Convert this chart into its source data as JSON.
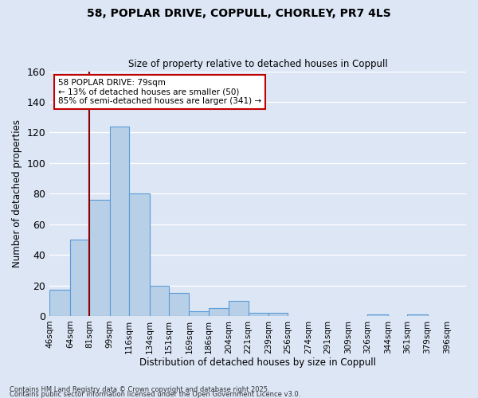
{
  "title1": "58, POPLAR DRIVE, COPPULL, CHORLEY, PR7 4LS",
  "title2": "Size of property relative to detached houses in Coppull",
  "xlabel": "Distribution of detached houses by size in Coppull",
  "ylabel": "Number of detached properties",
  "footnote1": "Contains HM Land Registry data © Crown copyright and database right 2025.",
  "footnote2": "Contains public sector information licensed under the Open Government Licence v3.0.",
  "bins": [
    46,
    64,
    81,
    99,
    116,
    134,
    151,
    169,
    186,
    204,
    221,
    239,
    256,
    274,
    291,
    309,
    326,
    344,
    361,
    379,
    396
  ],
  "bin_labels": [
    "46sqm",
    "64sqm",
    "81sqm",
    "99sqm",
    "116sqm",
    "134sqm",
    "151sqm",
    "169sqm",
    "186sqm",
    "204sqm",
    "221sqm",
    "239sqm",
    "256sqm",
    "274sqm",
    "291sqm",
    "309sqm",
    "326sqm",
    "344sqm",
    "361sqm",
    "379sqm",
    "396sqm"
  ],
  "values": [
    17,
    50,
    76,
    124,
    80,
    20,
    15,
    3,
    5,
    10,
    2,
    2,
    0,
    0,
    0,
    0,
    1,
    0,
    1,
    0,
    0
  ],
  "bar_color": "#b8cfe8",
  "bar_edge_color": "#5b9bd5",
  "bg_color": "#dce6f5",
  "grid_color": "#ffffff",
  "marker_color": "#8b0000",
  "annotation_line1": "58 POPLAR DRIVE: 79sqm",
  "annotation_line2": "← 13% of detached houses are smaller (50)",
  "annotation_line3": "85% of semi-detached houses are larger (341) →",
  "annotation_box_color": "#ffffff",
  "annotation_border_color": "#c00000",
  "ylim": [
    0,
    160
  ],
  "yticks": [
    0,
    20,
    40,
    60,
    80,
    100,
    120,
    140,
    160
  ]
}
